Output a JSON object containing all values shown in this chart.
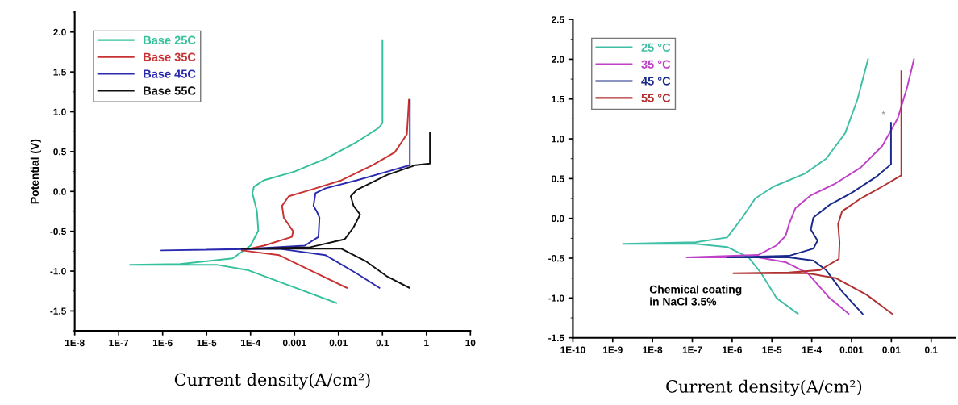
{
  "chart_data": [
    {
      "type": "line",
      "ylabel": "Potential (V)",
      "xlabel": "Current density(A/cm²)",
      "log": "x",
      "legend": "top left",
      "grid": false,
      "marker": "none",
      "line_style": "solid",
      "xlim": [
        1e-08,
        10
      ],
      "ylim": [
        -1.75,
        2.25
      ],
      "xticks": [
        {
          "value": 1e-08,
          "label": "1E-8"
        },
        {
          "value": 1e-07,
          "label": "1E-7"
        },
        {
          "value": 1e-06,
          "label": "1E-6"
        },
        {
          "value": 1e-05,
          "label": "1E-5"
        },
        {
          "value": 0.0001,
          "label": "1E-4"
        },
        0.001,
        0.01,
        0.1,
        1,
        10
      ],
      "yticks": [
        {
          "value": -1.5,
          "label": "-1.5"
        },
        {
          "value": -1.0,
          "label": "-1.0"
        },
        {
          "value": -0.5,
          "label": "-0.5"
        },
        {
          "value": 0,
          "label": "0.0"
        },
        0.5,
        {
          "value": 1,
          "label": "1.0"
        },
        1.5,
        {
          "value": 2,
          "label": "2.0"
        }
      ],
      "series": [
        {
          "name": "Base 25C",
          "color": "#35c09c",
          "x": [
            0.009,
            9e-05,
            1.7e-05,
            1.8e-07,
            2.5e-06,
            3.9e-05,
            0.0001,
            0.00015,
            0.00014,
            0.00011,
            0.00012,
            0.0002,
            0.001,
            0.005,
            0.026,
            0.083,
            0.1,
            0.1
          ],
          "values": [
            -1.4,
            -0.99,
            -0.92,
            -0.92,
            -0.91,
            -0.84,
            -0.68,
            -0.49,
            -0.25,
            -0.02,
            0.06,
            0.14,
            0.25,
            0.41,
            0.62,
            0.8,
            0.86,
            1.9
          ]
        },
        {
          "name": "Base 35C",
          "color": "#c83232",
          "x": [
            0.0155,
            0.0023,
            0.00045,
            6.3e-05,
            0.0002,
            0.00087,
            0.00093,
            0.00057,
            0.00052,
            0.00074,
            0.0023,
            0.0117,
            0.06,
            0.19,
            0.36,
            0.4
          ],
          "values": [
            -1.21,
            -0.99,
            -0.8,
            -0.74,
            -0.68,
            -0.57,
            -0.5,
            -0.33,
            -0.18,
            -0.06,
            0.02,
            0.14,
            0.33,
            0.49,
            0.72,
            1.15
          ]
        },
        {
          "name": "Base 45C",
          "color": "#2a2ab0",
          "x": [
            0.085,
            0.026,
            0.0051,
            0.00045,
            9.3e-07,
            9e-05,
            0.0017,
            0.0035,
            0.0037,
            0.0032,
            0.0027,
            0.003,
            0.0051,
            0.026,
            0.13,
            0.42,
            0.42
          ],
          "values": [
            -1.21,
            -1.03,
            -0.8,
            -0.72,
            -0.74,
            -0.72,
            -0.68,
            -0.57,
            -0.33,
            -0.25,
            -0.18,
            -0.02,
            0.04,
            0.14,
            0.25,
            0.33,
            1.15
          ]
        },
        {
          "name": "Base 55C",
          "color": "#111111",
          "x": [
            0.41,
            0.13,
            0.043,
            0.0117,
            6.3e-05,
            0.0023,
            0.0138,
            0.022,
            0.031,
            0.022,
            0.019,
            0.026,
            0.13,
            0.57,
            1.2,
            1.2
          ],
          "values": [
            -1.21,
            -1.07,
            -0.88,
            -0.72,
            -0.72,
            -0.7,
            -0.6,
            -0.45,
            -0.29,
            -0.18,
            -0.06,
            0.02,
            0.21,
            0.33,
            0.35,
            0.74
          ]
        }
      ]
    },
    {
      "type": "line",
      "xlabel": "Current density(A/cm²)",
      "log": "x",
      "legend": "top left",
      "grid": false,
      "marker": "none",
      "line_style": "solid",
      "xlim": [
        1e-10,
        0.4
      ],
      "ylim": [
        -1.5,
        2.5
      ],
      "xticks": [
        {
          "value": 1e-10,
          "label": "1E-10"
        },
        {
          "value": 1e-09,
          "label": "1E-9"
        },
        {
          "value": 1e-08,
          "label": "1E-8"
        },
        {
          "value": 1e-07,
          "label": "1E-7"
        },
        {
          "value": 1e-06,
          "label": "1E-6"
        },
        {
          "value": 1e-05,
          "label": "1E-5"
        },
        {
          "value": 0.0001,
          "label": "1E-4"
        },
        0.001,
        0.01,
        0.1
      ],
      "yticks": [
        {
          "value": -1.5,
          "label": "-1.5"
        },
        {
          "value": -1.0,
          "label": "-1.0"
        },
        {
          "value": -0.5,
          "label": "-0.5"
        },
        {
          "value": 0,
          "label": "0.0"
        },
        0.5,
        {
          "value": 1,
          "label": "1.0"
        },
        1.5,
        {
          "value": 2,
          "label": "2.0"
        },
        2.5
      ],
      "annotations": [
        "Chemical coating\nin NaCl 3.5%",
        "*"
      ],
      "series": [
        {
          "name": "25 °C",
          "color": "#3fbfa6",
          "x": [
            4.5e-05,
            1.3e-05,
            5.4e-06,
            2.6e-06,
            7.5e-07,
            1.2e-07,
            1.8e-09,
            1.2e-07,
            7.5e-07,
            1.8e-06,
            3.8e-06,
            1.1e-05,
            6.6e-05,
            0.00023,
            0.00069,
            0.0014,
            0.0026
          ],
          "values": [
            -1.2,
            -1.0,
            -0.69,
            -0.49,
            -0.36,
            -0.32,
            -0.32,
            -0.3,
            -0.24,
            0.01,
            0.25,
            0.4,
            0.56,
            0.75,
            1.07,
            1.49,
            2.0
          ]
        },
        {
          "name": "35 °C",
          "color": "#c040c8",
          "x": [
            0.00085,
            0.00028,
            8e-05,
            2.2e-05,
            4.5e-06,
            7.2e-08,
            4.5e-06,
            1.3e-05,
            2.2e-05,
            2.7e-05,
            3.9e-05,
            9.5e-05,
            0.0004,
            0.0017,
            0.0059,
            0.0145,
            0.025,
            0.037
          ],
          "values": [
            -1.2,
            -1.0,
            -0.69,
            -0.55,
            -0.49,
            -0.49,
            -0.46,
            -0.34,
            -0.22,
            -0.07,
            0.13,
            0.29,
            0.44,
            0.64,
            0.91,
            1.26,
            1.65,
            2.0
          ]
        },
        {
          "name": "45 °C",
          "color": "#1a2a8a",
          "x": [
            0.0019,
            0.00058,
            0.00023,
            0.00011,
            2.7e-05,
            7.4e-07,
            2.7e-05,
            0.00011,
            0.00014,
            9.5e-05,
            0.00011,
            0.00028,
            0.001,
            0.0041,
            0.0098,
            0.0098
          ],
          "values": [
            -1.2,
            -0.92,
            -0.65,
            -0.53,
            -0.49,
            -0.49,
            -0.47,
            -0.38,
            -0.28,
            -0.14,
            0.01,
            0.17,
            0.32,
            0.52,
            0.68,
            1.2
          ]
        },
        {
          "name": "55 °C",
          "color": "#b03030",
          "x": [
            0.0105,
            0.0024,
            0.0004,
            7.9e-05,
            1.07e-06,
            2.7e-05,
            0.00016,
            0.00048,
            0.0005,
            0.00046,
            0.00058,
            0.0017,
            0.0059,
            0.0178,
            0.0178
          ],
          "values": [
            -1.2,
            -0.96,
            -0.75,
            -0.69,
            -0.69,
            -0.68,
            -0.65,
            -0.51,
            -0.3,
            -0.07,
            0.09,
            0.25,
            0.4,
            0.54,
            1.85
          ]
        }
      ]
    }
  ]
}
